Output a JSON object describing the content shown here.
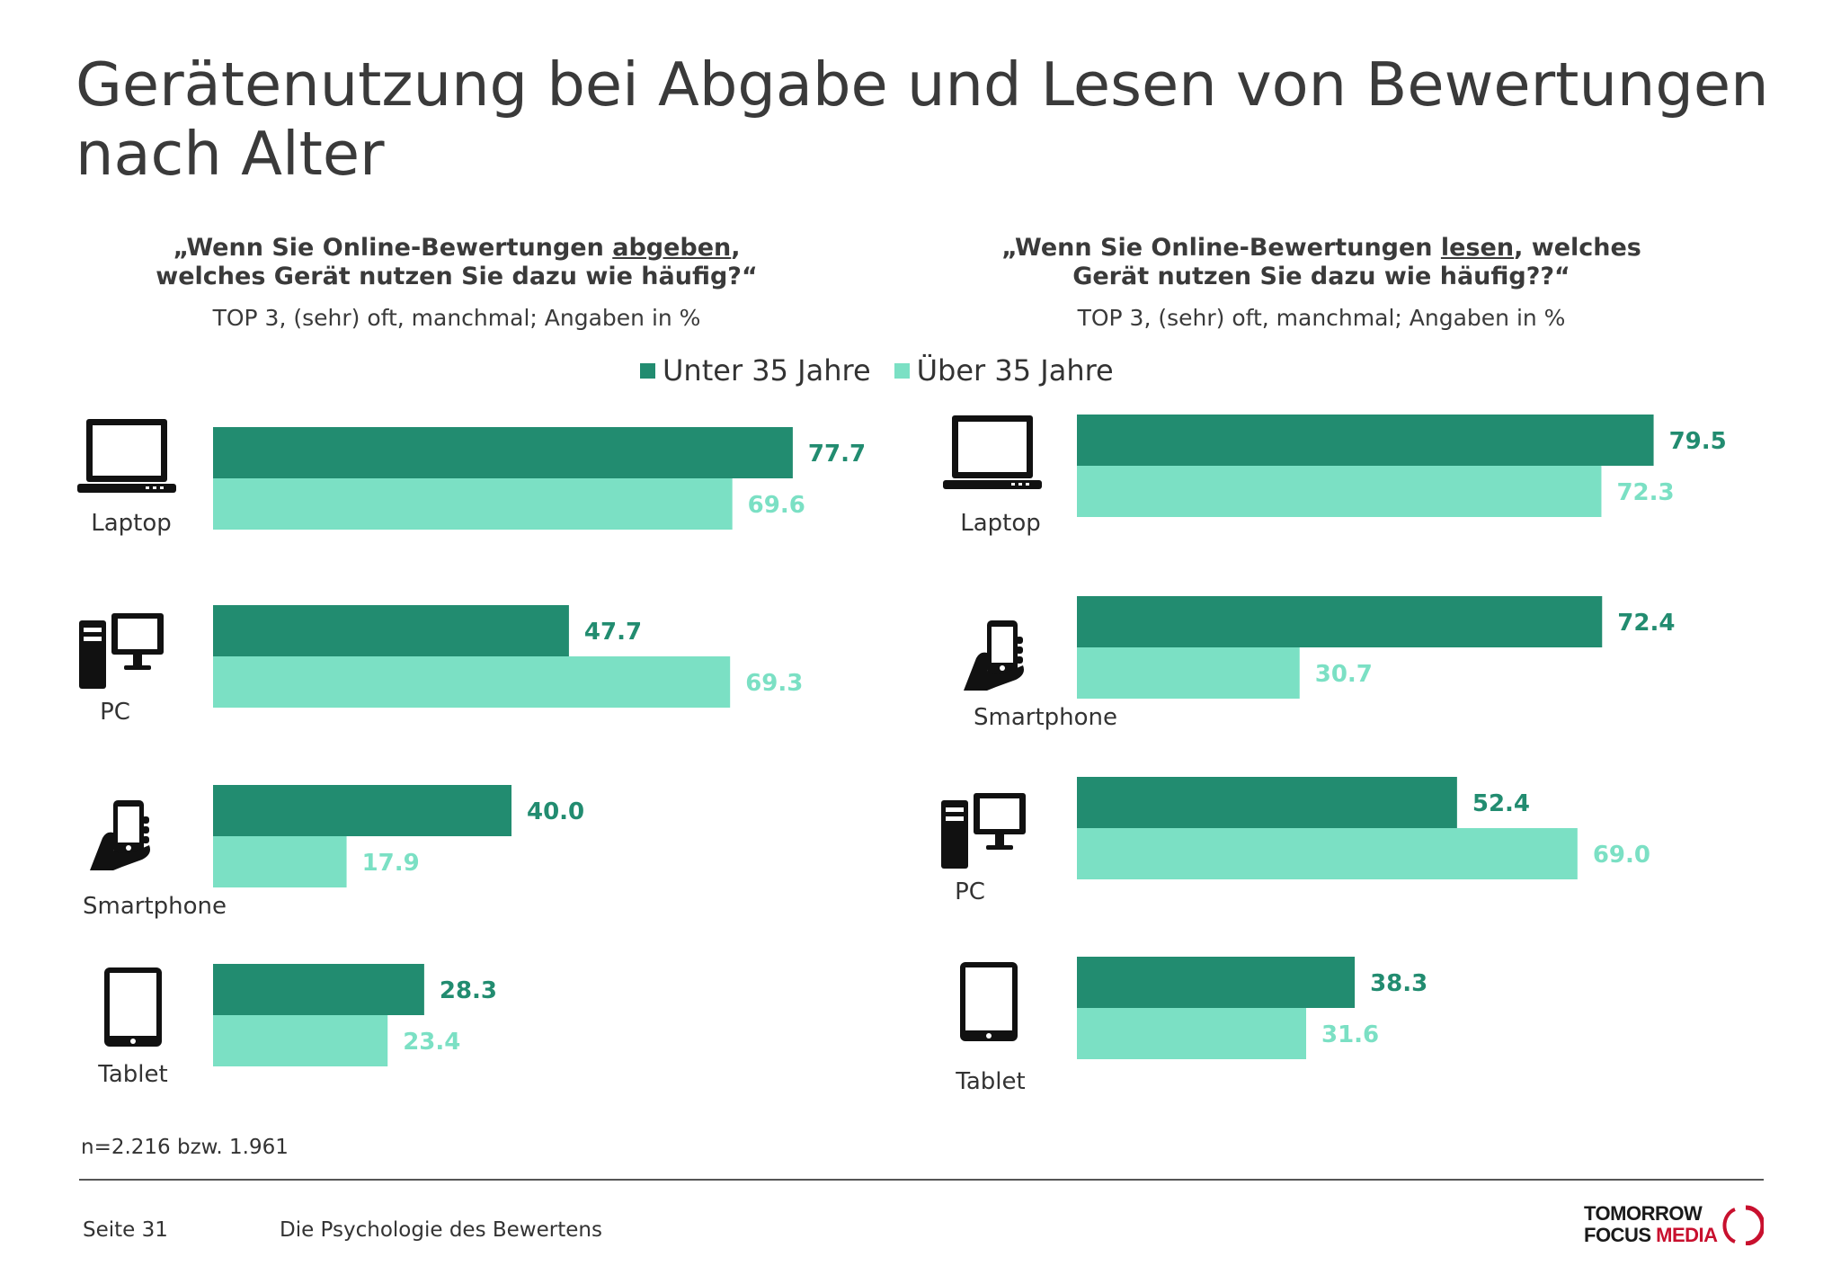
{
  "title": "Gerätenutzung bei Abgabe und Lesen von Bewertungen\nnach Alter",
  "legend": {
    "under35": "Unter 35 Jahre",
    "over35": "Über 35 Jahre"
  },
  "colors": {
    "under35": "#228c70",
    "over35": "#7be0c4"
  },
  "footnote": "n=2.216 bzw. 1.961",
  "footer": {
    "page": "Seite 31",
    "doc_title": "Die Psychologie des Bewertens",
    "logo_line1": "TOMORROW",
    "logo_line2a": "FOCUS ",
    "logo_line2b": "MEDIA"
  },
  "chart_data": [
    {
      "type": "bar",
      "orientation": "horizontal",
      "title_pre": "„Wenn Sie Online-Bewertungen ",
      "title_em": "abgeben",
      "title_post": ",\nwelches Gerät nutzen Sie dazu wie häufig?“",
      "subtitle": "TOP 3, (sehr) oft, manchmal; Angaben in %",
      "categories": [
        "Laptop",
        "PC",
        "Smartphone",
        "Tablet"
      ],
      "icons": [
        "laptop-icon",
        "pc-icon",
        "smartphone-icon",
        "tablet-icon"
      ],
      "series": [
        {
          "name": "Unter 35 Jahre",
          "values": [
            77.7,
            47.7,
            40.0,
            28.3
          ]
        },
        {
          "name": "Über 35 Jahre",
          "values": [
            69.6,
            69.3,
            17.9,
            23.4
          ]
        }
      ]
    },
    {
      "type": "bar",
      "orientation": "horizontal",
      "title_pre": "„Wenn Sie Online-Bewertungen ",
      "title_em": "lesen",
      "title_post": ", welches\nGerät nutzen Sie dazu wie häufig??“",
      "subtitle": "TOP 3, (sehr) oft, manchmal; Angaben in %",
      "categories": [
        "Laptop",
        "Smartphone",
        "PC",
        "Tablet"
      ],
      "icons": [
        "laptop-icon",
        "smartphone-icon",
        "pc-icon",
        "tablet-icon"
      ],
      "series": [
        {
          "name": "Unter 35 Jahre",
          "values": [
            79.5,
            72.4,
            52.4,
            38.3
          ]
        },
        {
          "name": "Über 35 Jahre",
          "values": [
            72.3,
            30.7,
            69.0,
            31.6
          ]
        }
      ]
    }
  ]
}
